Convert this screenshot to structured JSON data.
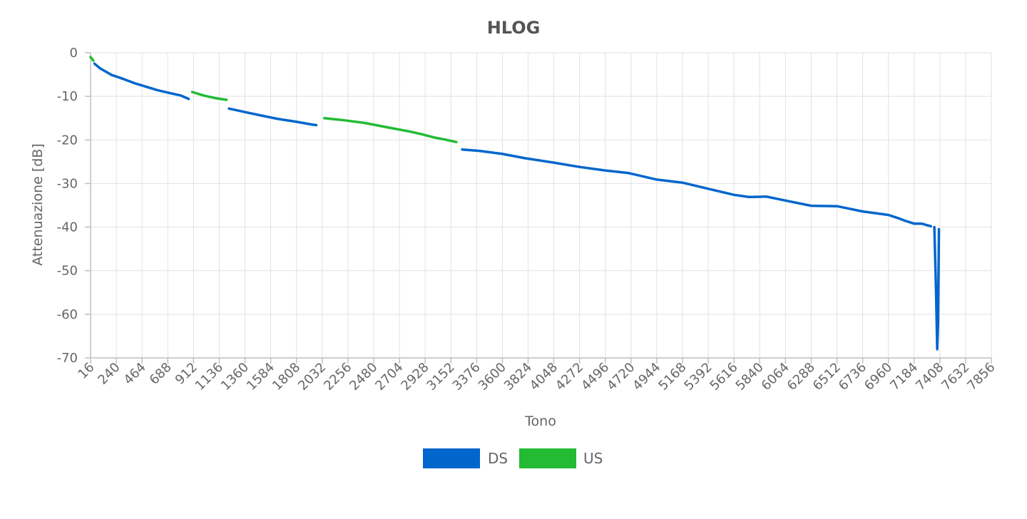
{
  "chart_data": {
    "type": "line",
    "title": "HLOG",
    "xlabel": "Tono",
    "ylabel": "Attenuazione [dB]",
    "xlim": [
      16,
      7856
    ],
    "ylim": [
      -70,
      0
    ],
    "x_ticks": [
      "16",
      "240",
      "464",
      "688",
      "912",
      "1136",
      "1360",
      "1584",
      "1808",
      "2032",
      "2256",
      "2480",
      "2704",
      "2928",
      "3152",
      "3376",
      "3600",
      "3824",
      "4048",
      "4272",
      "4496",
      "4720",
      "4944",
      "5168",
      "5392",
      "5616",
      "5840",
      "6064",
      "6288",
      "6512",
      "6736",
      "6960",
      "7184",
      "7408",
      "7632",
      "7856"
    ],
    "y_ticks": [
      "0",
      "-10",
      "-20",
      "-30",
      "-40",
      "-50",
      "-60",
      "-70"
    ],
    "grid": true,
    "legend_position": "bottom",
    "series": [
      {
        "name": "DS",
        "color": "#0066cc",
        "segments": [
          [
            [
              50,
              -2.5
            ],
            [
              100,
              -3.6
            ],
            [
              200,
              -5.1
            ],
            [
              300,
              -6
            ],
            [
              400,
              -7
            ],
            [
              500,
              -7.8
            ],
            [
              600,
              -8.6
            ],
            [
              700,
              -9.2
            ],
            [
              800,
              -9.8
            ],
            [
              870,
              -10.6
            ]
          ],
          [
            [
              1220,
              -12.8
            ],
            [
              1360,
              -13.6
            ],
            [
              1500,
              -14.4
            ],
            [
              1650,
              -15.2
            ],
            [
              1800,
              -15.8
            ],
            [
              1950,
              -16.5
            ],
            [
              1980,
              -16.6
            ]
          ],
          [
            [
              3250,
              -22.2
            ],
            [
              3400,
              -22.5
            ],
            [
              3600,
              -23.2
            ],
            [
              3800,
              -24.2
            ],
            [
              4048,
              -25.2
            ],
            [
              4272,
              -26.2
            ],
            [
              4496,
              -27
            ],
            [
              4700,
              -27.6
            ],
            [
              4944,
              -29.1
            ],
            [
              5168,
              -29.8
            ],
            [
              5392,
              -31.2
            ],
            [
              5616,
              -32.6
            ],
            [
              5750,
              -33.1
            ],
            [
              5900,
              -33
            ],
            [
              6064,
              -33.9
            ],
            [
              6288,
              -35.1
            ],
            [
              6512,
              -35.2
            ],
            [
              6736,
              -36.4
            ],
            [
              6960,
              -37.2
            ],
            [
              7050,
              -38
            ],
            [
              7100,
              -38.5
            ],
            [
              7184,
              -39.2
            ],
            [
              7250,
              -39.2
            ],
            [
              7300,
              -39.6
            ],
            [
              7330,
              -39.8
            ]
          ],
          [
            [
              7360,
              -40
            ],
            [
              7375,
              -55
            ],
            [
              7385,
              -68
            ],
            [
              7392,
              -62
            ],
            [
              7400,
              -40.5
            ]
          ]
        ]
      },
      {
        "name": "US",
        "color": "#22bb33",
        "segments": [
          [
            [
              16,
              -1
            ],
            [
              40,
              -1.8
            ]
          ],
          [
            [
              900,
              -9
            ],
            [
              1000,
              -9.8
            ],
            [
              1100,
              -10.4
            ],
            [
              1200,
              -10.8
            ]
          ],
          [
            [
              2050,
              -15
            ],
            [
              2200,
              -15.4
            ],
            [
              2400,
              -16.1
            ],
            [
              2600,
              -17.1
            ],
            [
              2800,
              -18.1
            ],
            [
              2900,
              -18.7
            ],
            [
              3000,
              -19.4
            ],
            [
              3100,
              -19.9
            ],
            [
              3200,
              -20.5
            ]
          ]
        ]
      }
    ]
  }
}
